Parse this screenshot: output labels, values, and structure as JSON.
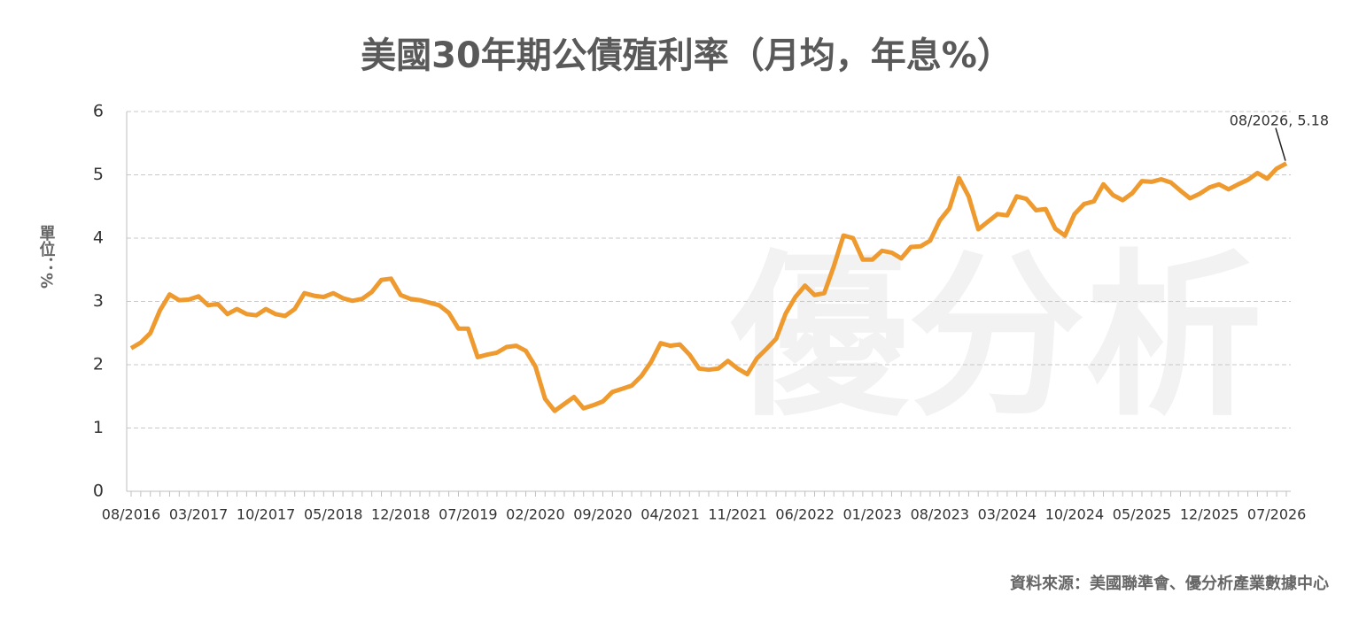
{
  "chart_data": {
    "type": "line",
    "title": "美國30年期公債殖利率（月均，年息%）",
    "y_label": "單位：%",
    "source": "資料來源：美國聯準會、優分析產業數據中心",
    "watermark": "優分析",
    "annotation": "08/2026, 5.18",
    "color": "#EE9A2F",
    "grid": true,
    "ylim": [
      0,
      6
    ],
    "yticks": [
      0,
      1,
      2,
      3,
      4,
      5,
      6
    ],
    "categories": [
      "08/2016",
      null,
      null,
      null,
      null,
      null,
      null,
      "03/2017",
      null,
      null,
      null,
      null,
      null,
      null,
      "10/2017",
      null,
      null,
      null,
      null,
      null,
      null,
      "05/2018",
      null,
      null,
      null,
      null,
      null,
      null,
      "12/2018",
      null,
      null,
      null,
      null,
      null,
      null,
      "07/2019",
      null,
      null,
      null,
      null,
      null,
      null,
      "02/2020",
      null,
      null,
      null,
      null,
      null,
      null,
      "09/2020",
      null,
      null,
      null,
      null,
      null,
      null,
      "04/2021",
      null,
      null,
      null,
      null,
      null,
      null,
      "11/2021",
      null,
      null,
      null,
      null,
      null,
      null,
      "06/2022",
      null,
      null,
      null,
      null,
      null,
      null,
      "01/2023",
      null,
      null,
      null,
      null,
      null,
      null,
      "08/2023",
      null,
      null,
      null,
      null,
      null,
      null,
      "03/2024",
      null,
      null,
      null,
      null,
      null,
      null,
      "10/2024",
      null,
      null,
      null,
      null,
      null,
      null,
      "05/2025",
      null,
      null,
      null,
      null,
      null,
      null,
      "12/2025",
      null,
      null,
      null,
      null,
      null,
      null,
      "07/2026",
      null
    ],
    "values": [
      2.26,
      2.35,
      2.5,
      2.86,
      3.11,
      3.02,
      3.03,
      3.08,
      2.94,
      2.96,
      2.8,
      2.88,
      2.8,
      2.78,
      2.88,
      2.8,
      2.77,
      2.88,
      3.13,
      3.09,
      3.07,
      3.13,
      3.05,
      3.01,
      3.04,
      3.15,
      3.34,
      3.36,
      3.1,
      3.04,
      3.02,
      2.98,
      2.94,
      2.82,
      2.57,
      2.57,
      2.12,
      2.16,
      2.19,
      2.28,
      2.3,
      2.22,
      1.97,
      1.46,
      1.27,
      1.38,
      1.49,
      1.31,
      1.36,
      1.42,
      1.57,
      1.62,
      1.67,
      1.82,
      2.04,
      2.34,
      2.3,
      2.32,
      2.16,
      1.94,
      1.92,
      1.94,
      2.06,
      1.94,
      1.85,
      2.1,
      2.25,
      2.41,
      2.81,
      3.07,
      3.25,
      3.1,
      3.13,
      3.56,
      4.04,
      4.0,
      3.66,
      3.66,
      3.8,
      3.77,
      3.68,
      3.86,
      3.87,
      3.96,
      4.28,
      4.47,
      4.95,
      4.66,
      4.14,
      4.26,
      4.38,
      4.36,
      4.66,
      4.62,
      4.44,
      4.46,
      4.15,
      4.04,
      4.38,
      4.54,
      4.58,
      4.85,
      4.68,
      4.6,
      4.71,
      4.9,
      4.89,
      4.93,
      4.88,
      4.75,
      4.63,
      4.7,
      4.8,
      4.85,
      4.77,
      4.85,
      4.92,
      5.03,
      4.94,
      5.1,
      5.18
    ]
  }
}
